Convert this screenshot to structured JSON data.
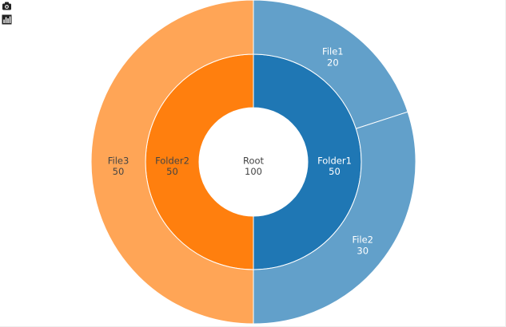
{
  "toolbar": {
    "camera_icon": "camera-icon",
    "chart_icon": "bar-chart-icon"
  },
  "chart_data": {
    "type": "sunburst",
    "nodes": [
      {
        "id": "root",
        "label": "Root",
        "value": 100,
        "parent": "",
        "color": "#ffffff",
        "text_color": "#444444"
      },
      {
        "id": "folder1",
        "label": "Folder1",
        "value": 50,
        "parent": "root",
        "color": "#1f77b4",
        "text_color": "#ffffff"
      },
      {
        "id": "folder2",
        "label": "Folder2",
        "value": 50,
        "parent": "root",
        "color": "#ff7f0e",
        "text_color": "#444444"
      },
      {
        "id": "file1",
        "label": "File1",
        "value": 20,
        "parent": "folder1",
        "color": "#62a0ca",
        "text_color": "#ffffff"
      },
      {
        "id": "file2",
        "label": "File2",
        "value": 30,
        "parent": "folder1",
        "color": "#62a0ca",
        "text_color": "#ffffff"
      },
      {
        "id": "file3",
        "label": "File3",
        "value": 50,
        "parent": "folder2",
        "color": "#ffa556",
        "text_color": "#444444"
      }
    ]
  }
}
